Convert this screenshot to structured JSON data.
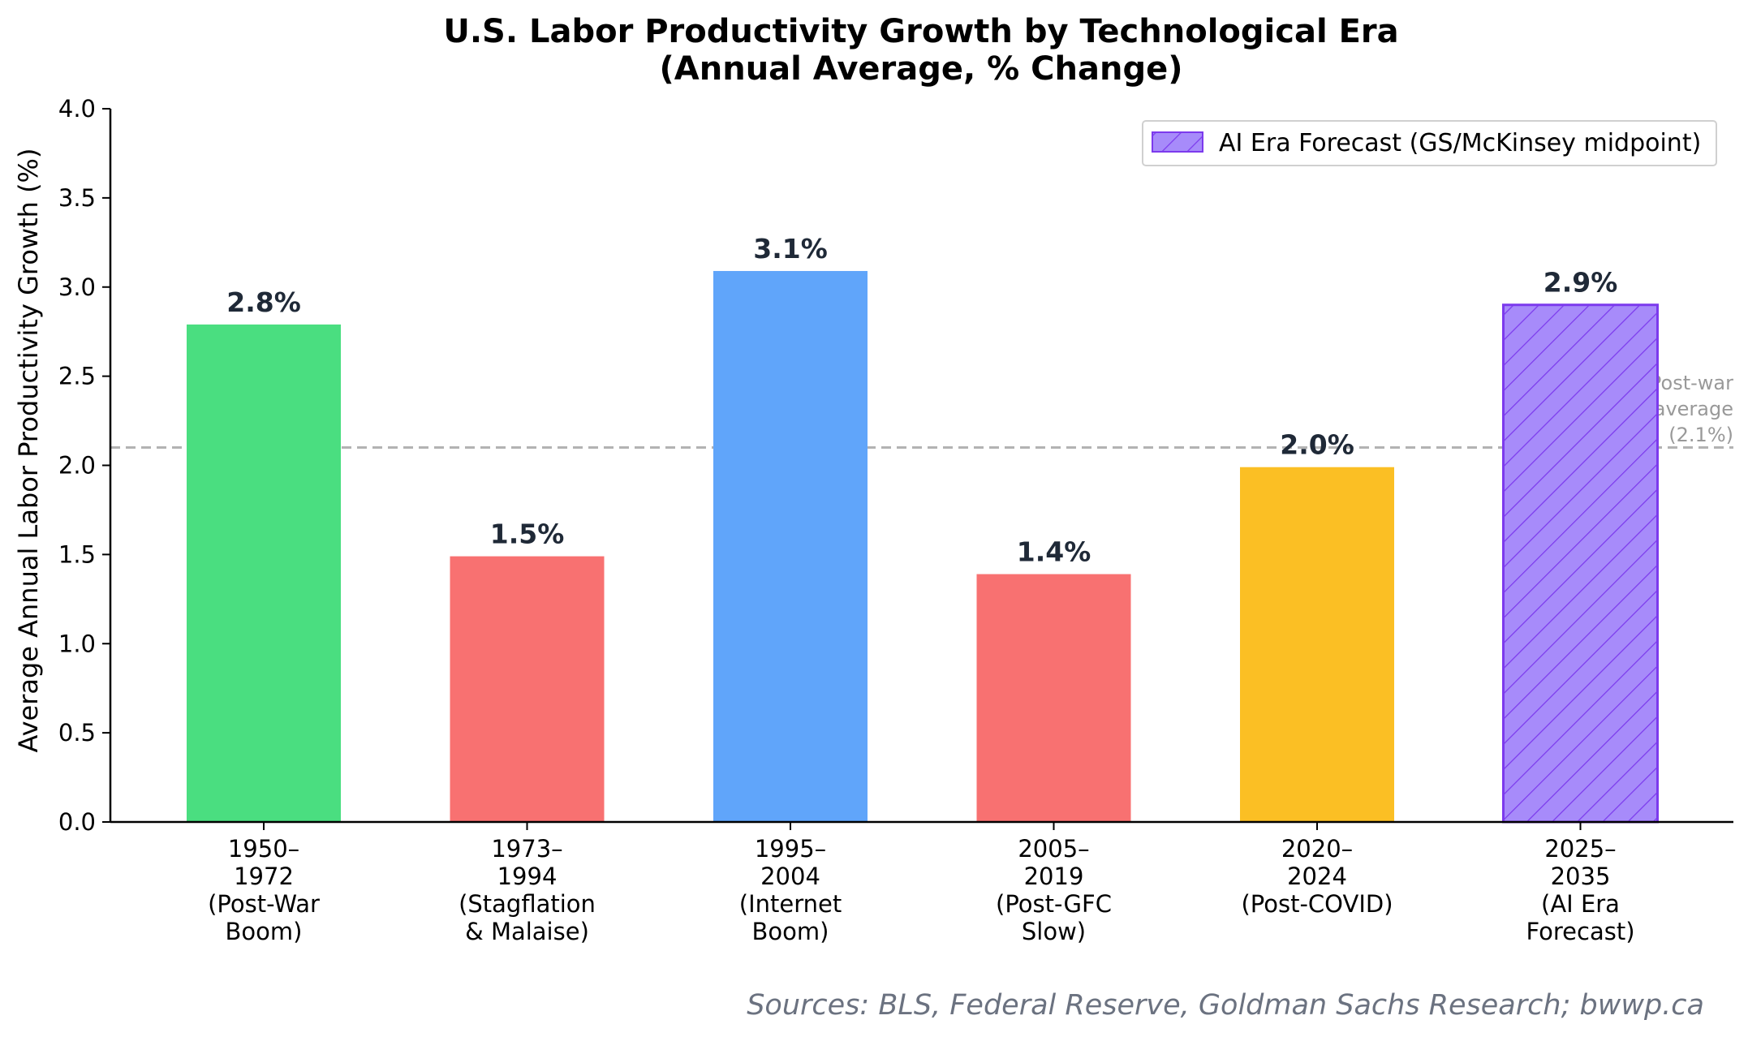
{
  "chart_data": {
    "type": "bar",
    "title_lines": [
      "U.S. Labor Productivity Growth by Technological Era",
      "(Annual Average, % Change)"
    ],
    "xlabel": "",
    "ylabel": "Average Annual Labor Productivity Growth (%)",
    "ylim": [
      0,
      4.0
    ],
    "yticks": [
      "0.0",
      "0.5",
      "1.0",
      "1.5",
      "2.0",
      "2.5",
      "3.0",
      "3.5",
      "4.0"
    ],
    "grid": false,
    "categories": [
      [
        "1950–",
        "1972",
        "(Post-War",
        "Boom)"
      ],
      [
        "1973–",
        "1994",
        "(Stagflation",
        "& Malaise)"
      ],
      [
        "1995–",
        "2004",
        "(Internet",
        "Boom)"
      ],
      [
        "2005–",
        "2019",
        "(Post-GFC",
        "Slow)"
      ],
      [
        "2020–",
        "2024",
        "(Post-COVID)"
      ],
      [
        "2025–",
        "2035",
        "(AI Era",
        "Forecast)"
      ]
    ],
    "values": [
      2.79,
      1.49,
      3.09,
      1.39,
      1.99,
      2.9
    ],
    "value_labels": [
      "2.8%",
      "1.5%",
      "3.1%",
      "1.4%",
      "2.0%",
      "2.9%"
    ],
    "colors": [
      "#4ade80",
      "#f87171",
      "#60a5fa",
      "#f87171",
      "#fbbf24",
      "#a78bfa"
    ],
    "hatched": [
      false,
      false,
      false,
      false,
      false,
      true
    ],
    "hatch_edge_color": "#7c3aed",
    "reference_line": {
      "value": 2.1,
      "label_lines": [
        "Post-war",
        "average",
        "(2.1%)"
      ],
      "color": "#b3b3b3"
    },
    "legend": {
      "position": "top-right",
      "entries": [
        {
          "label": "AI Era Forecast (GS/McKinsey midpoint)",
          "color": "#a78bfa",
          "hatched": true
        }
      ]
    },
    "source_note": "Sources: BLS, Federal Reserve, Goldman Sachs Research; bwwp.ca"
  }
}
